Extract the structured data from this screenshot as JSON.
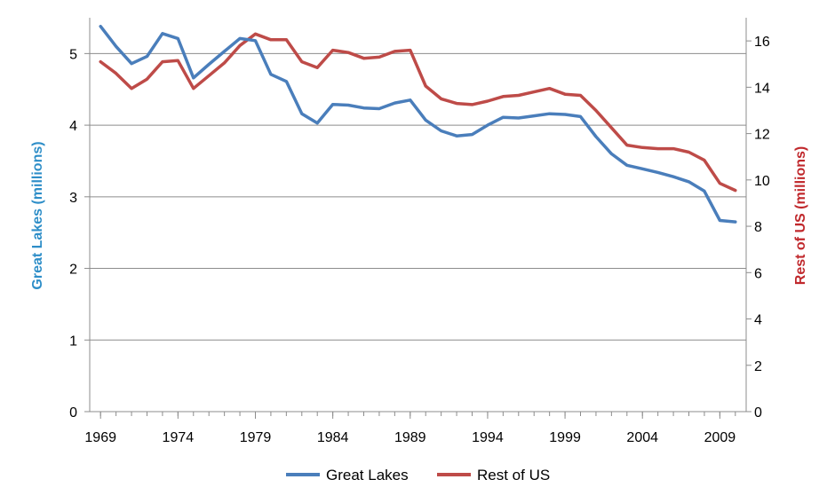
{
  "chart_data": {
    "type": "line",
    "title": "",
    "xlabel": "",
    "ylabel_left": "Great Lakes (millions)",
    "ylabel_right": "Rest of US (millions)",
    "ylim_left": [
      0,
      5.5
    ],
    "ylim_right": [
      0,
      17
    ],
    "yticks_left": [
      "0",
      "1",
      "2",
      "3",
      "4",
      "5"
    ],
    "yticks_right": [
      "0",
      "2",
      "4",
      "6",
      "8",
      "10",
      "12",
      "14",
      "16"
    ],
    "xticks": [
      "1969",
      "1974",
      "1979",
      "1984",
      "1989",
      "1994",
      "1999",
      "2004",
      "2009"
    ],
    "x": [
      1969,
      1970,
      1971,
      1972,
      1973,
      1974,
      1975,
      1976,
      1977,
      1978,
      1979,
      1980,
      1981,
      1982,
      1983,
      1984,
      1985,
      1986,
      1987,
      1988,
      1989,
      1990,
      1991,
      1992,
      1993,
      1994,
      1995,
      1996,
      1997,
      1998,
      1999,
      2000,
      2001,
      2002,
      2003,
      2004,
      2005,
      2006,
      2007,
      2008,
      2009,
      2010
    ],
    "grid": true,
    "legend_position": "bottom",
    "series": [
      {
        "name": "Great Lakes",
        "axis": "left",
        "color": "#4a7ebb",
        "values": [
          5.38,
          5.1,
          4.86,
          4.96,
          5.28,
          5.21,
          4.66,
          4.85,
          5.03,
          5.21,
          5.18,
          4.71,
          4.61,
          4.16,
          4.03,
          4.29,
          4.28,
          4.24,
          4.23,
          4.31,
          4.35,
          4.07,
          3.92,
          3.85,
          3.87,
          4.0,
          4.11,
          4.1,
          4.13,
          4.16,
          4.15,
          4.12,
          3.84,
          3.6,
          3.44,
          3.39,
          3.34,
          3.28,
          3.21,
          3.08,
          2.67,
          2.65
        ]
      },
      {
        "name": "Rest of US",
        "axis": "right",
        "color": "#be4b48",
        "values": [
          15.1,
          14.6,
          13.95,
          14.35,
          15.1,
          15.15,
          13.95,
          14.5,
          15.05,
          15.8,
          16.3,
          16.05,
          16.05,
          15.1,
          14.85,
          15.6,
          15.5,
          15.25,
          15.3,
          15.55,
          15.6,
          14.05,
          13.5,
          13.3,
          13.25,
          13.4,
          13.6,
          13.65,
          13.8,
          13.95,
          13.7,
          13.65,
          13.0,
          12.25,
          11.5,
          11.4,
          11.35,
          11.35,
          11.2,
          10.85,
          9.85,
          9.55
        ]
      }
    ]
  }
}
